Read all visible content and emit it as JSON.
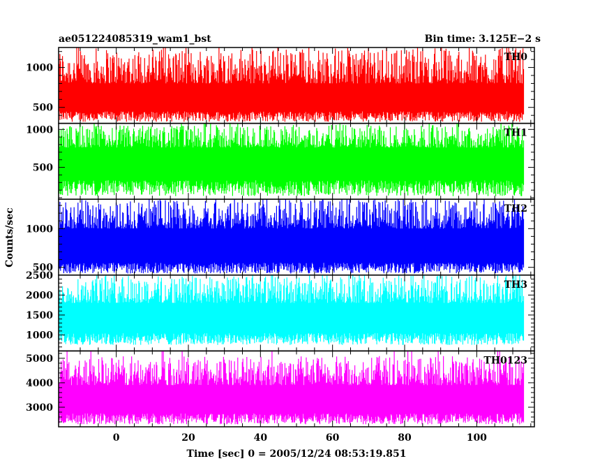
{
  "chart_data": {
    "type": "line",
    "title": "ae051224085319_wam1_bst",
    "subtitle": "Bin time: 3.125E−2 s",
    "xlabel": "Time [sec] 0 = 2005/12/24 08:53:19.851",
    "ylabel": "Counts/sec",
    "xlim": [
      -16,
      116
    ],
    "x_ticks": [
      0,
      20,
      40,
      60,
      80,
      100
    ],
    "x_tick_labels": [
      "0",
      "20",
      "40",
      "60",
      "80",
      "100"
    ],
    "x_data_range": [
      -16,
      113
    ],
    "grid": false,
    "panels": [
      {
        "name": "TH0",
        "color": "#ff0000",
        "ylim": [
          300,
          1250
        ],
        "ticks": [
          500,
          1000
        ],
        "tick_labels": [
          "500",
          "1000"
        ],
        "baseline": 300,
        "mean": 620,
        "low_min": 320,
        "low_max": 450,
        "high_min": 800,
        "high_max": 1250
      },
      {
        "name": "TH1",
        "color": "#00ff00",
        "ylim": [
          80,
          1080
        ],
        "ticks": [
          500,
          1000
        ],
        "tick_labels": [
          "500",
          "1000"
        ],
        "baseline": 80,
        "mean": 540,
        "low_min": 120,
        "low_max": 330,
        "high_min": 760,
        "high_max": 1060
      },
      {
        "name": "TH2",
        "color": "#0000ff",
        "ylim": [
          400,
          1380
        ],
        "ticks": [
          500,
          1000
        ],
        "tick_labels": [
          "500",
          "1000"
        ],
        "baseline": 400,
        "mean": 770,
        "low_min": 420,
        "low_max": 560,
        "high_min": 1000,
        "high_max": 1380
      },
      {
        "name": "TH3",
        "color": "#00ffff",
        "ylim": [
          600,
          2500
        ],
        "ticks": [
          1000,
          1500,
          2000,
          2500
        ],
        "tick_labels": [
          "1000",
          "1500",
          "2000",
          "2500"
        ],
        "baseline": 600,
        "mean": 1450,
        "low_min": 750,
        "low_max": 1050,
        "high_min": 1800,
        "high_max": 2500
      },
      {
        "name": "TH0123",
        "color": "#ff00ff",
        "ylim": [
          2200,
          5300
        ],
        "ticks": [
          3000,
          4000,
          5000
        ],
        "tick_labels": [
          "3000",
          "4000",
          "5000"
        ],
        "baseline": 2200,
        "mean": 3400,
        "low_min": 2300,
        "low_max": 2750,
        "high_min": 3900,
        "high_max": 5100
      }
    ]
  }
}
